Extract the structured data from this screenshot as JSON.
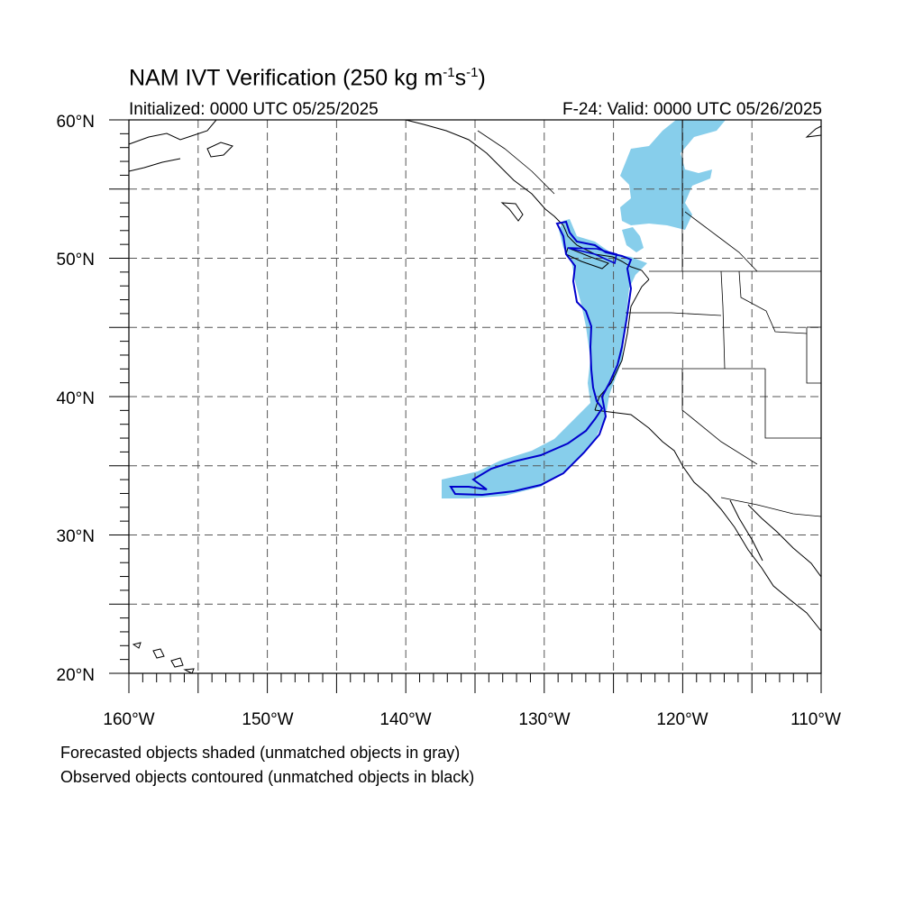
{
  "header": {
    "title_main": "NAM IVT Verification (250 kg m",
    "title_exp1": "-1",
    "title_mid": "s",
    "title_exp2": "-1",
    "title_end": ")",
    "initialized": "Initialized: 0000 UTC 05/25/2025",
    "valid": "F-24: Valid: 0000 UTC 05/26/2025"
  },
  "map": {
    "lon_range": [
      -160,
      -110
    ],
    "lat_range": [
      20,
      60
    ],
    "lat_labels": [
      "20°N",
      "30°N",
      "40°N",
      "50°N",
      "60°N"
    ],
    "lon_labels": [
      "160°W",
      "150°W",
      "140°W",
      "130°W",
      "120°W",
      "110°W"
    ],
    "grid": "dashed, every 5 degrees",
    "forecast_color": "#87ceeb",
    "observed_color": "#0000cc"
  },
  "legend": {
    "line1": "Forecasted objects shaded (unmatched objects in gray)",
    "line2": "Observed objects contoured (unmatched objects in black)"
  }
}
